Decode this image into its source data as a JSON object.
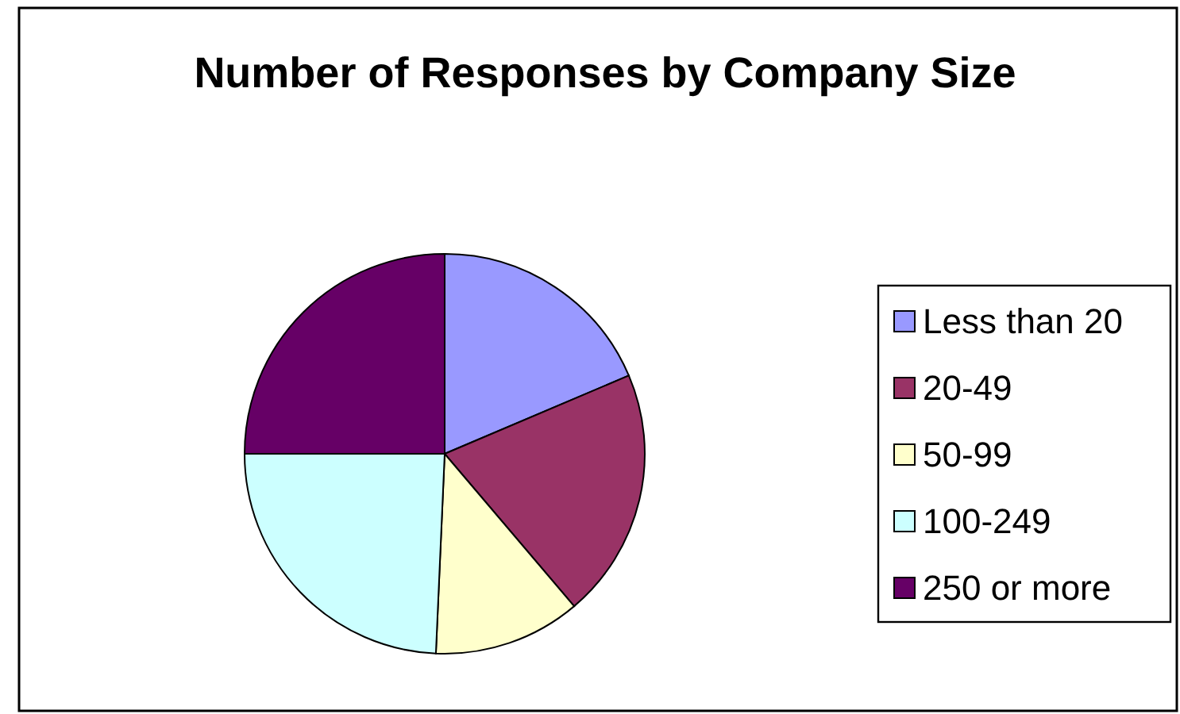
{
  "chart_data": {
    "type": "pie",
    "title": "Number of Responses by Company Size",
    "categories": [
      "Less than 20",
      "20-49",
      "50-99",
      "100-249",
      "250 or more"
    ],
    "values": [
      18.6,
      20.2,
      11.9,
      24.3,
      25.0
    ],
    "colors": [
      "#9999ff",
      "#993366",
      "#ffffcc",
      "#ccffff",
      "#660066"
    ],
    "legend": "right"
  }
}
